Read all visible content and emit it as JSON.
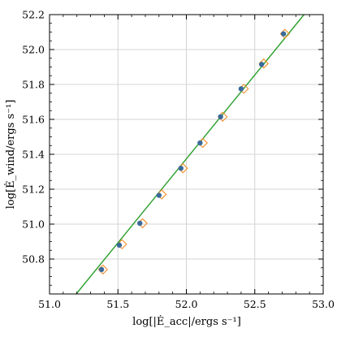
{
  "chart_data": {
    "type": "scatter",
    "xlabel": "log[|Ė_acc|/ergs s⁻¹]",
    "ylabel": "log[Ė_wind/ergs s⁻¹]",
    "xlim": [
      51.0,
      53.0
    ],
    "ylim": [
      50.6,
      52.2
    ],
    "xticks": [
      "51.0",
      "51.5",
      "52.0",
      "52.5",
      "53.0"
    ],
    "yticks": [
      "50.8",
      "51.0",
      "51.2",
      "51.4",
      "51.6",
      "51.8",
      "52.0",
      "52.2"
    ],
    "grid": true,
    "colors": {
      "points": "#3b6a9a",
      "markers": "#f28e2b",
      "line": "#2ca02c"
    },
    "series": [
      {
        "marker": "circle",
        "x": [
          51.38,
          51.51,
          51.66,
          51.8,
          51.96,
          52.1,
          52.25,
          52.4,
          52.55,
          52.71
        ],
        "y": [
          50.74,
          50.88,
          51.005,
          51.165,
          51.32,
          51.465,
          51.615,
          51.775,
          51.915,
          52.09
        ]
      },
      {
        "marker": "diamond-open",
        "x": [
          51.39,
          51.53,
          51.68,
          51.82,
          51.975,
          52.12,
          52.265,
          52.42,
          52.565,
          52.72
        ],
        "y": [
          50.74,
          50.885,
          51.005,
          51.17,
          51.32,
          51.465,
          51.615,
          51.775,
          51.92,
          52.09
        ]
      },
      {
        "type": "line",
        "x": [
          51.195,
          52.86
        ],
        "y": [
          50.6,
          52.2
        ]
      }
    ]
  }
}
